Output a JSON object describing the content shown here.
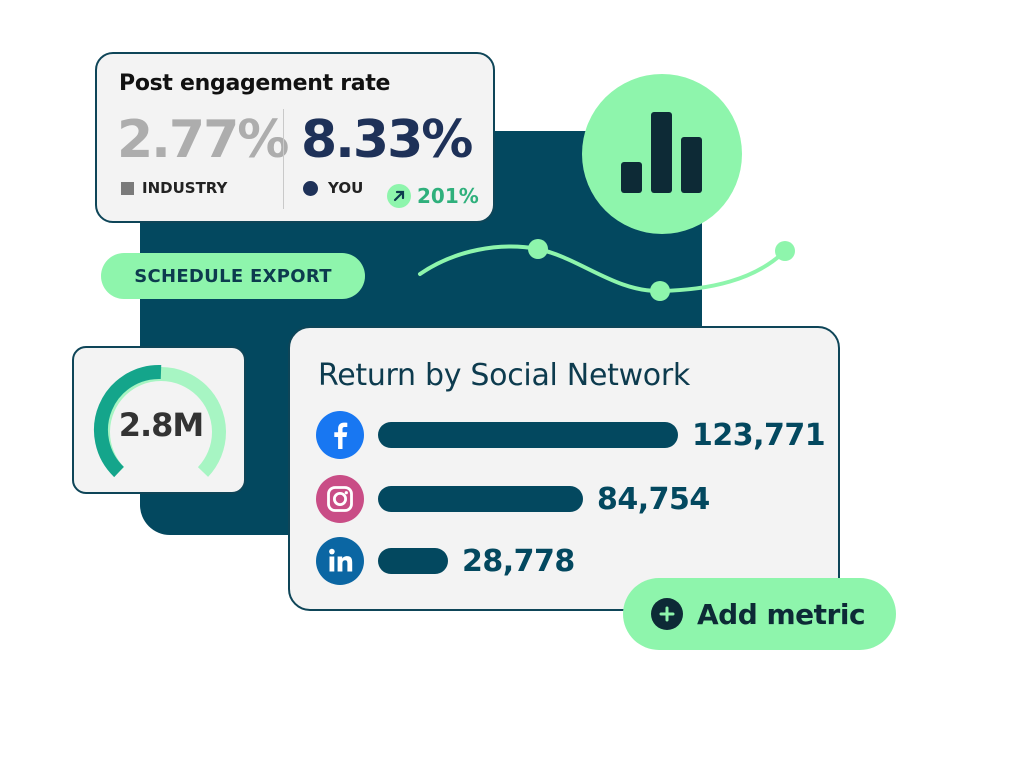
{
  "engagement": {
    "title": "Post engagement rate",
    "industry_value": "2.77%",
    "industry_label": "INDUSTRY",
    "you_value": "8.33%",
    "you_label": "YOU",
    "change": "201%",
    "colors": {
      "industry": "#7a7a7a",
      "you": "#1e3158",
      "change": "#2fb07c"
    }
  },
  "chart_icon": {
    "icon": "bar-chart-icon"
  },
  "export": {
    "label": "SCHEDULE EXPORT"
  },
  "gauge": {
    "value": "2.8M",
    "fill_fraction": 0.6
  },
  "social": {
    "title": "Return by Social Network",
    "networks": [
      {
        "name": "facebook",
        "icon": "facebook-icon",
        "value": 123771,
        "display": "123,771",
        "color": "#1877f2"
      },
      {
        "name": "instagram",
        "icon": "instagram-icon",
        "value": 84754,
        "display": "84,754",
        "color": "#c94d86"
      },
      {
        "name": "linkedin",
        "icon": "linkedin-icon",
        "value": 28778,
        "display": "28,778",
        "color": "#0b66a3"
      }
    ]
  },
  "add_metric": {
    "label": "Add metric",
    "icon": "plus-icon"
  },
  "theme": {
    "accent": "#8ef5ac",
    "dark": "#03485f",
    "card_bg": "#f3f3f3"
  }
}
